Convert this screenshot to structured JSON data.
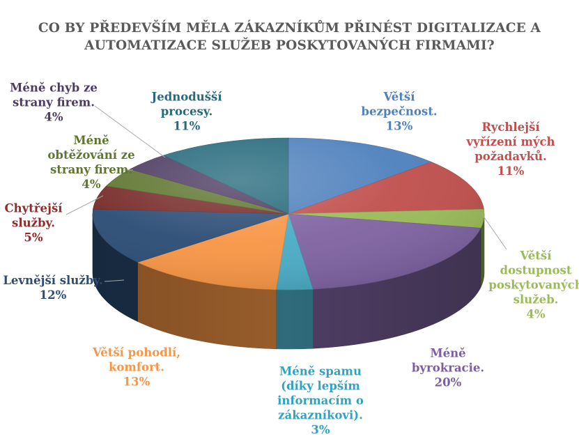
{
  "chart_data": {
    "type": "pie",
    "title_lines": [
      "CO BY PŘEDEVŠÍM MĚLA ZÁKAZNÍKŮM PŘINÉST DIGITALIZACE A",
      "AUTOMATIZACE SLUŽEB POSKYTOVANÝCH FIRMAMI?"
    ],
    "slices": [
      {
        "label_lines": [
          "Větší",
          "bezpečnost."
        ],
        "percent_label": "13%",
        "value": 13,
        "color": "#4F81BD",
        "label_color": "#4F81BD"
      },
      {
        "label_lines": [
          "Rychlejší",
          "vyřízení mých",
          "požadavků."
        ],
        "percent_label": "11%",
        "value": 11,
        "color": "#C0504D",
        "label_color": "#C0504D"
      },
      {
        "label_lines": [
          "Větší",
          "dostupnost",
          "poskytovaných",
          "služeb."
        ],
        "percent_label": "4%",
        "value": 4,
        "color": "#9BBB59",
        "label_color": "#9BBB59"
      },
      {
        "label_lines": [
          "Méně",
          "byrokracie."
        ],
        "percent_label": "20%",
        "value": 20,
        "color": "#8064A2",
        "label_color": "#7B5FA0"
      },
      {
        "label_lines": [
          "Méně spamu",
          "(díky lepším",
          "informacím o",
          "zákazníkovi)."
        ],
        "percent_label": "3%",
        "value": 3,
        "color": "#4BACC6",
        "label_color": "#31A2C2"
      },
      {
        "label_lines": [
          "Větší pohodlí,",
          "komfort."
        ],
        "percent_label": "13%",
        "value": 13,
        "color": "#F79646",
        "label_color": "#F79646"
      },
      {
        "label_lines": [
          "Levnější služby."
        ],
        "percent_label": "12%",
        "value": 12,
        "color": "#2C4D75",
        "label_color": "#2C4D75"
      },
      {
        "label_lines": [
          "Chytřejší",
          "služby."
        ],
        "percent_label": "5%",
        "value": 5,
        "color": "#772C2A",
        "label_color": "#8B2E2C"
      },
      {
        "label_lines": [
          "Méně",
          "obtěžování ze",
          "strany firem."
        ],
        "percent_label": "4%",
        "value": 4,
        "color": "#5F7530",
        "label_color": "#5F7530"
      },
      {
        "label_lines": [
          "Méně chyb ze",
          "strany firem."
        ],
        "percent_label": "4%",
        "value": 4,
        "color": "#4D3B62",
        "label_color": "#4D3B62"
      },
      {
        "label_lines": [
          "Jednodušší",
          "procesy."
        ],
        "percent_label": "11%",
        "value": 11,
        "color": "#276A7C",
        "label_color": "#276A7C"
      }
    ],
    "legend": "none"
  }
}
